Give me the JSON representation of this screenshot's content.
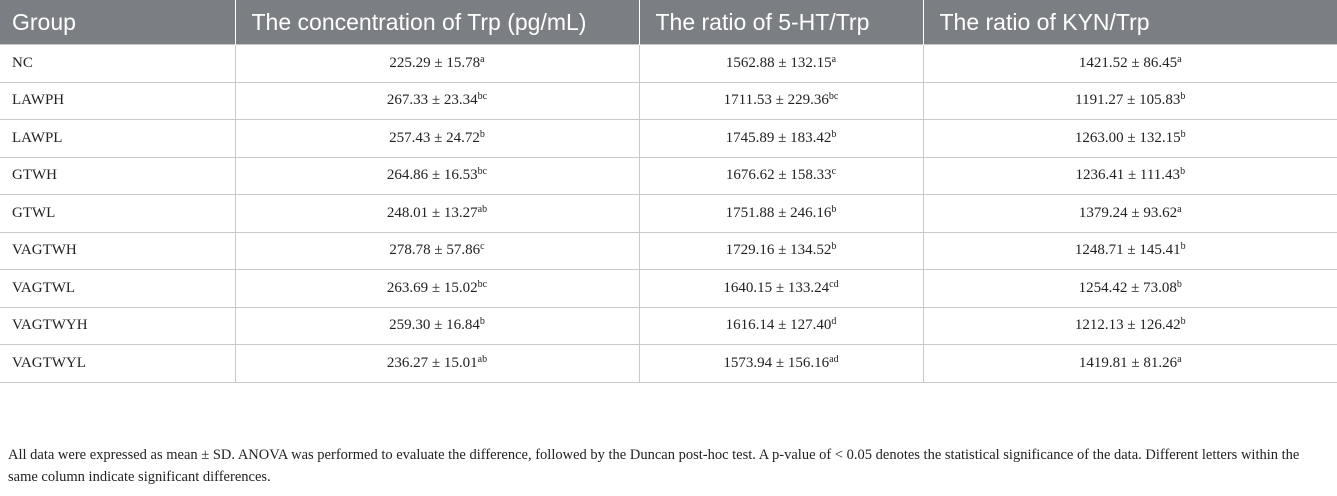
{
  "headers": [
    "Group",
    "The concentration of Trp (pg/mL)",
    "The ratio of 5-HT/Trp",
    "The ratio of KYN/Trp"
  ],
  "rows": [
    {
      "group": "NC",
      "trp": {
        "v": "225.29 ± 15.78",
        "s": "a"
      },
      "ht": {
        "v": "1562.88 ± 132.15",
        "s": "a"
      },
      "kyn": {
        "v": "1421.52 ± 86.45",
        "s": "a"
      }
    },
    {
      "group": "LAWPH",
      "trp": {
        "v": "267.33 ± 23.34",
        "s": "bc"
      },
      "ht": {
        "v": "1711.53 ± 229.36",
        "s": "bc"
      },
      "kyn": {
        "v": "1191.27 ± 105.83",
        "s": "b"
      }
    },
    {
      "group": "LAWPL",
      "trp": {
        "v": "257.43 ± 24.72",
        "s": "b"
      },
      "ht": {
        "v": "1745.89 ± 183.42",
        "s": "b"
      },
      "kyn": {
        "v": "1263.00 ± 132.15",
        "s": "b"
      }
    },
    {
      "group": "GTWH",
      "trp": {
        "v": "264.86 ± 16.53",
        "s": "bc"
      },
      "ht": {
        "v": "1676.62 ± 158.33",
        "s": "c"
      },
      "kyn": {
        "v": "1236.41 ± 111.43",
        "s": "b"
      }
    },
    {
      "group": "GTWL",
      "trp": {
        "v": "248.01 ± 13.27",
        "s": "ab"
      },
      "ht": {
        "v": "1751.88 ± 246.16",
        "s": "b"
      },
      "kyn": {
        "v": "1379.24 ± 93.62",
        "s": "a"
      }
    },
    {
      "group": "VAGTWH",
      "trp": {
        "v": "278.78 ± 57.86",
        "s": "c"
      },
      "ht": {
        "v": "1729.16 ± 134.52",
        "s": "b"
      },
      "kyn": {
        "v": "1248.71 ± 145.41",
        "s": "b"
      }
    },
    {
      "group": "VAGTWL",
      "trp": {
        "v": "263.69 ± 15.02",
        "s": "bc"
      },
      "ht": {
        "v": "1640.15 ± 133.24",
        "s": "cd"
      },
      "kyn": {
        "v": "1254.42 ± 73.08",
        "s": "b"
      }
    },
    {
      "group": "VAGTWYH",
      "trp": {
        "v": "259.30 ± 16.84",
        "s": "b"
      },
      "ht": {
        "v": "1616.14 ± 127.40",
        "s": "d"
      },
      "kyn": {
        "v": "1212.13 ± 126.42",
        "s": "b"
      }
    },
    {
      "group": "VAGTWYL",
      "trp": {
        "v": "236.27 ± 15.01",
        "s": "ab"
      },
      "ht": {
        "v": "1573.94 ± 156.16",
        "s": "ad"
      },
      "kyn": {
        "v": "1419.81 ± 81.26",
        "s": "a"
      }
    }
  ],
  "footnote": "All data were expressed as mean ± SD. ANOVA was performed to evaluate the difference, followed by the Duncan post-hoc test. A p-value of < 0.05 denotes the statistical significance of the data. Different letters within the same column indicate significant differences.",
  "colors": {
    "header_bg": "#7b7f84",
    "header_text": "#ffffff",
    "grid": "#c9c9c9"
  }
}
